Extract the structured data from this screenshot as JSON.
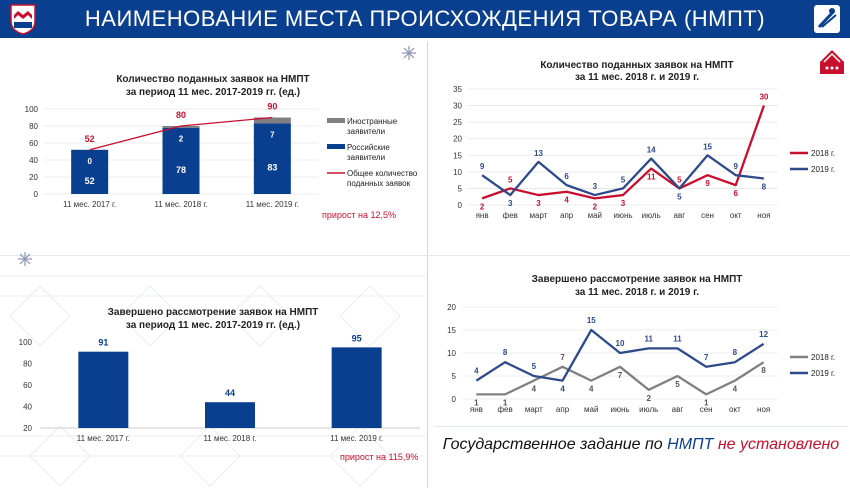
{
  "header": {
    "title": "НАИМЕНОВАНИЕ МЕСТА ПРОИСХОЖДЕНИЯ ТОВАРА (НМПТ)",
    "logo_left": "shield-logo-icon",
    "logo_right": "rospatent-logo-icon",
    "colors": {
      "background": "#0a3f8f",
      "text": "#ffffff"
    }
  },
  "colors": {
    "blue": "#0a3f8f",
    "gray": "#808080",
    "red": "#c8102e",
    "navy_line": "#2e4a8a"
  },
  "panels": {
    "top_left": {
      "growth": "прирост на 12,5%",
      "chart_data": {
        "type": "bar",
        "title": "Количество поданных заявок на НМПТ за период 11 мес. 2017-2019 гг. (ед.)",
        "categories": [
          "11 мес. 2017 г.",
          "11 мес. 2018 г.",
          "11 мес. 2019 г."
        ],
        "series": [
          {
            "name": "Российские заявители",
            "values": [
              52,
              78,
              83
            ],
            "color": "#0a3f8f"
          },
          {
            "name": "Иностранные заявители",
            "values": [
              0,
              2,
              7
            ],
            "color": "#808080"
          },
          {
            "name": "Общее количество поданных заявок",
            "values": [
              52,
              80,
              90
            ],
            "color": "#c8102e",
            "kind": "line"
          }
        ],
        "value_labels": {
          "russian": [
            "52",
            "78",
            "83"
          ],
          "foreign": [
            "0",
            "2",
            "7"
          ],
          "total": [
            "52",
            "80",
            "90"
          ]
        },
        "yticks": [
          "0",
          "20",
          "40",
          "60",
          "80",
          "100"
        ],
        "ylim": [
          0,
          100
        ],
        "legend": {
          "position": "right",
          "items": [
            "Иностранные заявители",
            "Российские заявители",
            "Общее количество поданных заявок"
          ]
        }
      }
    },
    "top_right": {
      "chart_data": {
        "type": "line",
        "title": "Количество поданных заявок на НМПТ за 11 мес. 2018 г. и 2019 г.",
        "categories": [
          "янв",
          "фев",
          "март",
          "апр",
          "май",
          "июнь",
          "июль",
          "авг",
          "сен",
          "окт",
          "ноя"
        ],
        "series": [
          {
            "name": "2018 г.",
            "values": [
              2,
              5,
              3,
              4,
              2,
              3,
              11,
              5,
              9,
              6,
              30
            ],
            "color": "#c8102e"
          },
          {
            "name": "2019 г.",
            "values": [
              9,
              3,
              13,
              6,
              3,
              5,
              14,
              5,
              15,
              9,
              8
            ],
            "color": "#2e4a8a"
          }
        ],
        "value_labels": {
          "s2018": [
            "2",
            "5",
            "3",
            "4",
            "2",
            "3",
            "11",
            "5",
            "9",
            "6",
            "30"
          ],
          "s2019": [
            "9",
            "3",
            "13",
            "6",
            "3",
            "5",
            "14",
            "5",
            "15",
            "9",
            "8"
          ]
        },
        "yticks": [
          "0",
          "5",
          "10",
          "15",
          "20",
          "25",
          "30",
          "35"
        ],
        "ylim": [
          0,
          35
        ],
        "legend": {
          "position": "right",
          "items": [
            "2018 г.",
            "2019 г."
          ]
        }
      }
    },
    "bottom_left": {
      "growth": "прирост на 115,9%",
      "chart_data": {
        "type": "bar",
        "title": "Завершено рассмотрение заявок на НМПТ за период 11 мес. 2017-2019 гг. (ед.)",
        "categories": [
          "11 мес. 2017 г.",
          "11 мес. 2018 г.",
          "11 мес. 2019 г."
        ],
        "values": [
          91,
          44,
          95
        ],
        "value_labels": [
          "91",
          "44",
          "95"
        ],
        "yticks": [
          "20",
          "40",
          "60",
          "80",
          "100"
        ],
        "ylim": [
          20,
          100
        ],
        "color": "#0a3f8f"
      }
    },
    "bottom_right": {
      "chart_data": {
        "type": "line",
        "title": "Завершено рассмотрение заявок на НМПТ за 11 мес. 2018 г. и 2019 г.",
        "categories": [
          "янв",
          "фев",
          "март",
          "апр",
          "май",
          "июнь",
          "июль",
          "авг",
          "сен",
          "окт",
          "ноя"
        ],
        "series": [
          {
            "name": "2018 г.",
            "values": [
              1,
              1,
              4,
              7,
              4,
              7,
              2,
              5,
              1,
              4,
              8
            ],
            "color": "#808080"
          },
          {
            "name": "2019 г.",
            "values": [
              4,
              8,
              5,
              4,
              15,
              10,
              11,
              11,
              7,
              8,
              12
            ],
            "color": "#2e4a8a"
          }
        ],
        "value_labels": {
          "s2018": [
            "1",
            "1",
            "4",
            "7",
            "4",
            "7",
            "2",
            "5",
            "1",
            "4",
            "8"
          ],
          "s2019": [
            "4",
            "8",
            "5",
            "4",
            "15",
            "10",
            "11",
            "11",
            "7",
            "8",
            "12"
          ]
        },
        "yticks": [
          "0",
          "5",
          "10",
          "15",
          "20"
        ],
        "ylim": [
          0,
          20
        ],
        "legend": {
          "position": "right",
          "items": [
            "2018 г.",
            "2019 г."
          ]
        }
      }
    }
  },
  "footer": {
    "part1": "Государственное задание по ",
    "part2": "НМПТ",
    "part3": " не установлено"
  }
}
